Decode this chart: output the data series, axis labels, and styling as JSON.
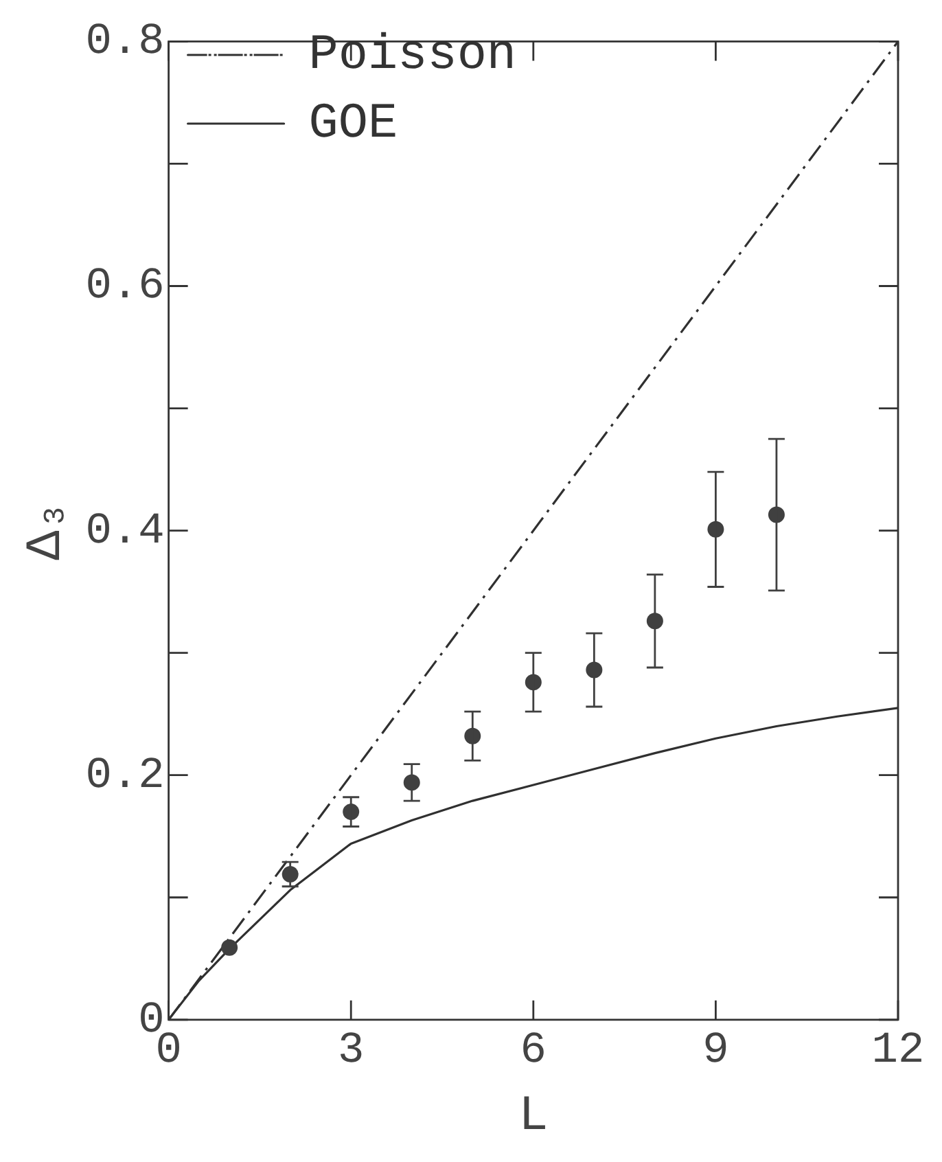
{
  "chart_data": {
    "type": "scatter",
    "xlabel": "L",
    "ylabel": "Δ₃",
    "xlim": [
      0,
      12
    ],
    "xticks": [
      0,
      3,
      6,
      9,
      12
    ],
    "ylim": [
      0,
      0.8
    ],
    "yticks": [
      0,
      {
        "value": 0.1,
        "label": null
      },
      0.2,
      {
        "value": 0.3,
        "label": null
      },
      0.4,
      {
        "value": 0.5,
        "label": null
      },
      0.6,
      {
        "value": 0.7,
        "label": null
      },
      0.8
    ],
    "grid": false,
    "legend": "top left",
    "series": [
      {
        "color": "#404040",
        "marker": "circle",
        "x": [
          1,
          2,
          3,
          4,
          5,
          6,
          7,
          8,
          9,
          10
        ],
        "values": [
          0.059,
          0.119,
          0.17,
          0.194,
          0.232,
          0.276,
          0.286,
          0.326,
          0.401,
          0.413
        ],
        "errors": [
          null,
          0.01,
          0.012,
          0.015,
          0.02,
          0.024,
          0.03,
          0.038,
          0.047,
          0.062
        ]
      },
      {
        "type": "line",
        "name": "Poisson",
        "color": "#303030",
        "line_style": "dashdot",
        "marker": "none",
        "x": [
          0,
          12
        ],
        "values": [
          0,
          0.8
        ]
      },
      {
        "type": "line",
        "name": "GOE",
        "color": "#303030",
        "line_style": "solid",
        "marker": "none",
        "x": [
          0,
          0.25,
          0.5,
          1,
          2,
          3,
          4,
          5,
          6,
          7,
          8,
          9,
          10,
          11,
          12
        ],
        "values": [
          0,
          0.016,
          0.032,
          0.058,
          0.106,
          0.144,
          0.163,
          0.179,
          0.192,
          0.205,
          0.218,
          0.23,
          0.24,
          0.248,
          0.255
        ]
      }
    ]
  }
}
